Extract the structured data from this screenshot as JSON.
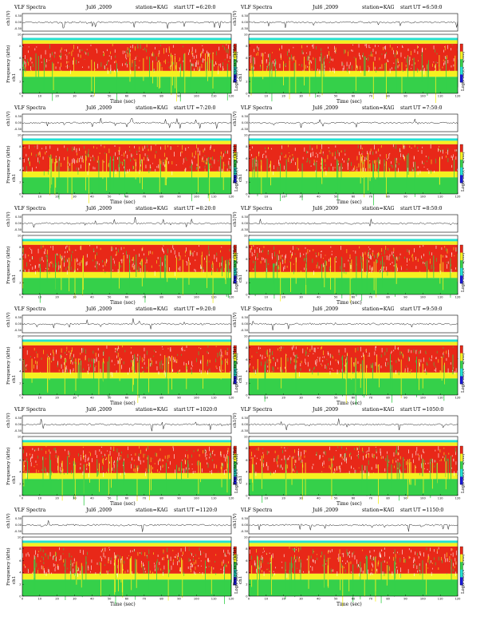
{
  "figure": {
    "title": "VLF Spectra",
    "date": "Jul6 ,2009",
    "station": "station=KAG",
    "start_label": "start",
    "xlabel": "Time (sec)",
    "wave_ylabel": "ch1(V)",
    "freq_ylabel_prefix": "ch1",
    "freq_ylabel": "Frequency (kHz)",
    "colorbar_label": "Log(PSD)(V^2/Hz)",
    "colors": {
      "low": "#1a1adc",
      "mid": "#22e0d0",
      "green": "#35d04a",
      "yellow": "#f5f020",
      "red": "#e82818",
      "white": "#ffffff"
    }
  },
  "chart_data": [
    {
      "type": "heatmap",
      "panel": "left-1",
      "start_ut": "UT =6:20:0",
      "xlim": [
        0,
        120
      ],
      "ylim": [
        0,
        10
      ],
      "wave_ylim": [
        -0.3,
        0.3
      ],
      "x_ticks": [
        0,
        10,
        20,
        30,
        40,
        50,
        60,
        70,
        80,
        90,
        100,
        110,
        120
      ],
      "y_ticks": [
        0,
        2,
        4,
        6,
        8,
        10
      ],
      "wave_ticks": [
        "0.30",
        "0.00",
        "-0.30"
      ]
    },
    {
      "type": "heatmap",
      "panel": "right-1",
      "start_ut": "UT =6:50:0",
      "xlim": [
        0,
        120
      ],
      "ylim": [
        0,
        10
      ],
      "wave_ylim": [
        -0.3,
        0.3
      ],
      "x_ticks": [
        0,
        10,
        20,
        30,
        40,
        50,
        60,
        70,
        80,
        90,
        100,
        110,
        120
      ],
      "y_ticks": [
        0,
        2,
        4,
        6,
        8,
        10
      ],
      "wave_ticks": [
        "0.30",
        "0.00",
        "-0.30"
      ]
    },
    {
      "type": "heatmap",
      "panel": "left-2",
      "start_ut": "UT =7:20:0",
      "xlim": [
        0,
        120
      ],
      "ylim": [
        0,
        10
      ],
      "wave_ylim": [
        -0.3,
        0.3
      ],
      "x_ticks": [
        0,
        10,
        20,
        30,
        40,
        50,
        60,
        70,
        80,
        90,
        100,
        110,
        120
      ],
      "y_ticks": [
        0,
        2,
        4,
        6,
        8,
        10
      ],
      "wave_ticks": [
        "0.30",
        "0.00",
        "-0.30"
      ]
    },
    {
      "type": "heatmap",
      "panel": "right-2",
      "start_ut": "UT =7:50:0",
      "xlim": [
        0,
        120
      ],
      "ylim": [
        0,
        10
      ],
      "wave_ylim": [
        -0.3,
        0.3
      ],
      "x_ticks": [
        0,
        10,
        20,
        30,
        40,
        50,
        60,
        70,
        80,
        90,
        100,
        110,
        120
      ],
      "y_ticks": [
        0,
        2,
        4,
        6,
        8,
        10
      ],
      "wave_ticks": [
        "0.30",
        "0.00",
        "-0.30"
      ]
    },
    {
      "type": "heatmap",
      "panel": "left-3",
      "start_ut": "UT =8:20:0",
      "xlim": [
        0,
        120
      ],
      "ylim": [
        0,
        10
      ],
      "wave_ylim": [
        -0.3,
        0.3
      ],
      "x_ticks": [
        0,
        10,
        20,
        30,
        40,
        50,
        60,
        70,
        80,
        90,
        100,
        110,
        120
      ],
      "y_ticks": [
        0,
        2,
        4,
        6,
        8,
        10
      ],
      "wave_ticks": [
        "0.30",
        "0.00",
        "-0.30"
      ]
    },
    {
      "type": "heatmap",
      "panel": "right-3",
      "start_ut": "UT =8:50:0",
      "xlim": [
        0,
        120
      ],
      "ylim": [
        0,
        10
      ],
      "wave_ylim": [
        -0.3,
        0.3
      ],
      "x_ticks": [
        0,
        10,
        20,
        30,
        40,
        50,
        60,
        70,
        80,
        90,
        100,
        110,
        120
      ],
      "y_ticks": [
        0,
        2,
        4,
        6,
        8,
        10
      ],
      "wave_ticks": [
        "0.30",
        "0.00",
        "-0.30"
      ]
    },
    {
      "type": "heatmap",
      "panel": "left-4",
      "start_ut": "UT =9:20:0",
      "xlim": [
        0,
        120
      ],
      "ylim": [
        0,
        10
      ],
      "wave_ylim": [
        -0.3,
        0.3
      ],
      "x_ticks": [
        0,
        10,
        20,
        30,
        40,
        50,
        60,
        70,
        80,
        90,
        100,
        110,
        120
      ],
      "y_ticks": [
        0,
        2,
        4,
        6,
        8,
        10
      ],
      "wave_ticks": [
        "0.30",
        "0.00",
        "-0.30"
      ]
    },
    {
      "type": "heatmap",
      "panel": "right-4",
      "start_ut": "UT =9:50:0",
      "xlim": [
        0,
        120
      ],
      "ylim": [
        0,
        10
      ],
      "wave_ylim": [
        -0.3,
        0.3
      ],
      "x_ticks": [
        0,
        10,
        20,
        30,
        40,
        50,
        60,
        70,
        80,
        90,
        100,
        110,
        120
      ],
      "y_ticks": [
        0,
        2,
        4,
        6,
        8,
        10
      ],
      "wave_ticks": [
        "0.30",
        "0.00",
        "-0.30"
      ]
    },
    {
      "type": "heatmap",
      "panel": "left-5",
      "start_ut": "UT =1020:0",
      "xlim": [
        0,
        120
      ],
      "ylim": [
        0,
        10
      ],
      "wave_ylim": [
        -0.3,
        0.3
      ],
      "x_ticks": [
        0,
        10,
        20,
        30,
        40,
        50,
        60,
        70,
        80,
        90,
        100,
        110,
        120
      ],
      "y_ticks": [
        0,
        2,
        4,
        6,
        8,
        10
      ],
      "wave_ticks": [
        "0.30",
        "0.00",
        "-0.30"
      ]
    },
    {
      "type": "heatmap",
      "panel": "right-5",
      "start_ut": "UT =1050:0",
      "xlim": [
        0,
        120
      ],
      "ylim": [
        0,
        10
      ],
      "wave_ylim": [
        -0.3,
        0.3
      ],
      "x_ticks": [
        0,
        10,
        20,
        30,
        40,
        50,
        60,
        70,
        80,
        90,
        100,
        110,
        120
      ],
      "y_ticks": [
        0,
        2,
        4,
        6,
        8,
        10
      ],
      "wave_ticks": [
        "0.30",
        "0.00",
        "-0.30"
      ]
    },
    {
      "type": "heatmap",
      "panel": "left-6",
      "start_ut": "UT =1120:0",
      "xlim": [
        0,
        120
      ],
      "ylim": [
        0,
        10
      ],
      "wave_ylim": [
        -0.3,
        0.3
      ],
      "x_ticks": [
        0,
        10,
        20,
        30,
        40,
        50,
        60,
        70,
        80,
        90,
        100,
        110,
        120
      ],
      "y_ticks": [
        0,
        2,
        4,
        6,
        8,
        10
      ],
      "wave_ticks": [
        "0.30",
        "0.00",
        "-0.30"
      ]
    },
    {
      "type": "heatmap",
      "panel": "right-6",
      "start_ut": "UT =1150:0",
      "xlim": [
        0,
        120
      ],
      "ylim": [
        0,
        10
      ],
      "wave_ylim": [
        -0.3,
        0.3
      ],
      "x_ticks": [
        0,
        10,
        20,
        30,
        40,
        50,
        60,
        70,
        80,
        90,
        100,
        110,
        120
      ],
      "y_ticks": [
        0,
        2,
        4,
        6,
        8,
        10
      ],
      "wave_ticks": [
        "0.30",
        "0.00",
        "-0.30"
      ]
    }
  ]
}
